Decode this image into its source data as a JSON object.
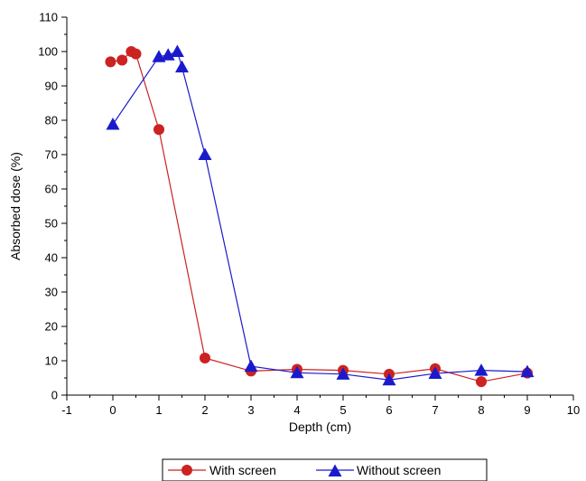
{
  "chart_data": {
    "type": "line",
    "title": "",
    "xlabel": "Depth (cm)",
    "ylabel": "Absorbed dose (%)",
    "xlim": [
      -1,
      10
    ],
    "ylim": [
      0,
      110
    ],
    "x_ticks": [
      -1,
      0,
      1,
      2,
      3,
      4,
      5,
      6,
      7,
      8,
      9,
      10
    ],
    "y_ticks": [
      0,
      10,
      20,
      30,
      40,
      50,
      60,
      70,
      80,
      90,
      100,
      110
    ],
    "grid": false,
    "legend_position": "bottom",
    "series": [
      {
        "name": "With screen",
        "color": "#cc2222",
        "line_color": "#cc2222",
        "marker": "circle",
        "x": [
          -0.05,
          0.2,
          0.4,
          0.5,
          1,
          2,
          3,
          4,
          5,
          6,
          7,
          8,
          9
        ],
        "y": [
          97,
          97.5,
          100,
          99.3,
          77.3,
          10.8,
          7,
          7.5,
          7.2,
          6.1,
          7.7,
          3.9,
          6.4
        ]
      },
      {
        "name": "Without screen",
        "color": "#1a1acc",
        "line_color": "#1a1acc",
        "marker": "triangle",
        "x": [
          0,
          1,
          1.2,
          1.4,
          1.5,
          2,
          3,
          4,
          5,
          6,
          7,
          8,
          9
        ],
        "y": [
          78.8,
          98.5,
          99,
          100,
          95.5,
          70,
          8.4,
          6.5,
          6.1,
          4.4,
          6.3,
          7.2,
          6.8
        ]
      }
    ]
  }
}
